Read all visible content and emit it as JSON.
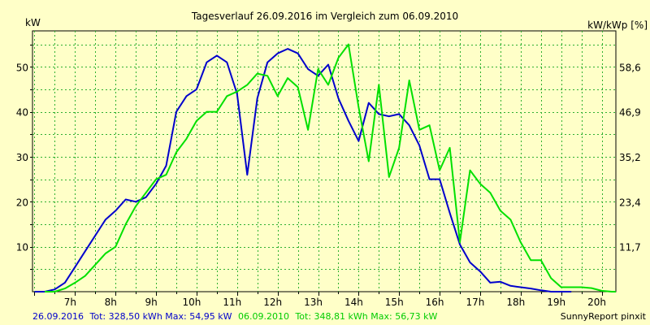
{
  "chart_data": {
    "type": "line",
    "title": "Tagesverlauf 26.09.2016 im Vergleich zum 06.09.2010",
    "ylabel_left": "kW",
    "ylabel_right": "kW/kWp [%]",
    "xlim": [
      5.95,
      20.35
    ],
    "ylim": [
      0,
      58
    ],
    "x_ticks": [
      {
        "value": 7,
        "label": "7h"
      },
      {
        "value": 8,
        "label": "8h"
      },
      {
        "value": 9,
        "label": "9h"
      },
      {
        "value": 10,
        "label": "10h"
      },
      {
        "value": 11,
        "label": "11h"
      },
      {
        "value": 12,
        "label": "12h"
      },
      {
        "value": 13,
        "label": "13h"
      },
      {
        "value": 14,
        "label": "14h"
      },
      {
        "value": 15,
        "label": "15h"
      },
      {
        "value": 16,
        "label": "16h"
      },
      {
        "value": 17,
        "label": "17h"
      },
      {
        "value": 18,
        "label": "18h"
      },
      {
        "value": 19,
        "label": "19h"
      },
      {
        "value": 20,
        "label": "20h"
      }
    ],
    "y_ticks_left": [
      10,
      20,
      30,
      40,
      50
    ],
    "y_ticks_right": [
      {
        "value": 10,
        "label": "11,7"
      },
      {
        "value": 20,
        "label": "23,4"
      },
      {
        "value": 30,
        "label": "35,2"
      },
      {
        "value": 40,
        "label": "46,9"
      },
      {
        "value": 50,
        "label": "58,6"
      }
    ],
    "grid": true,
    "series": [
      {
        "name": "26.09.2016",
        "color": "#0000cc",
        "points": [
          [
            6.0,
            0
          ],
          [
            6.25,
            0
          ],
          [
            6.5,
            0.5
          ],
          [
            6.75,
            2
          ],
          [
            7.0,
            5.5
          ],
          [
            7.25,
            9
          ],
          [
            7.5,
            12.5
          ],
          [
            7.75,
            16
          ],
          [
            8.0,
            18
          ],
          [
            8.25,
            20.5
          ],
          [
            8.5,
            20
          ],
          [
            8.75,
            21
          ],
          [
            9.0,
            24
          ],
          [
            9.25,
            28
          ],
          [
            9.5,
            40
          ],
          [
            9.75,
            43.5
          ],
          [
            10.0,
            45
          ],
          [
            10.25,
            51
          ],
          [
            10.5,
            52.5
          ],
          [
            10.75,
            51
          ],
          [
            11.0,
            44
          ],
          [
            11.25,
            26
          ],
          [
            11.5,
            43
          ],
          [
            11.75,
            51
          ],
          [
            12.0,
            53
          ],
          [
            12.25,
            54
          ],
          [
            12.5,
            53
          ],
          [
            12.75,
            49.5
          ],
          [
            13.0,
            48
          ],
          [
            13.25,
            50.5
          ],
          [
            13.5,
            43
          ],
          [
            13.75,
            38
          ],
          [
            14.0,
            33.5
          ],
          [
            14.25,
            42
          ],
          [
            14.5,
            39.5
          ],
          [
            14.75,
            39
          ],
          [
            15.0,
            39.5
          ],
          [
            15.25,
            37
          ],
          [
            15.5,
            32.5
          ],
          [
            15.75,
            25
          ],
          [
            16.0,
            25
          ],
          [
            16.25,
            17.5
          ],
          [
            16.5,
            10.5
          ],
          [
            16.75,
            6.5
          ],
          [
            17.0,
            4.5
          ],
          [
            17.25,
            2
          ],
          [
            17.5,
            2.2
          ],
          [
            17.75,
            1.3
          ],
          [
            18.0,
            1
          ],
          [
            18.25,
            0.7
          ],
          [
            18.5,
            0.3
          ],
          [
            18.75,
            0
          ],
          [
            19.0,
            0
          ],
          [
            19.25,
            0
          ]
        ]
      },
      {
        "name": "06.09.2010",
        "color": "#00e000",
        "points": [
          [
            6.25,
            0
          ],
          [
            6.5,
            0
          ],
          [
            6.75,
            0.7
          ],
          [
            7.0,
            2
          ],
          [
            7.25,
            3.5
          ],
          [
            7.5,
            6
          ],
          [
            7.75,
            8.5
          ],
          [
            8.0,
            10
          ],
          [
            8.25,
            15
          ],
          [
            8.5,
            19
          ],
          [
            8.75,
            22
          ],
          [
            9.0,
            25
          ],
          [
            9.25,
            26
          ],
          [
            9.5,
            31
          ],
          [
            9.75,
            34
          ],
          [
            10.0,
            38
          ],
          [
            10.25,
            40
          ],
          [
            10.5,
            40
          ],
          [
            10.75,
            43.5
          ],
          [
            11.0,
            44.5
          ],
          [
            11.25,
            46
          ],
          [
            11.5,
            48.5
          ],
          [
            11.75,
            48
          ],
          [
            12.0,
            43.5
          ],
          [
            12.25,
            47.5
          ],
          [
            12.5,
            45.5
          ],
          [
            12.75,
            36
          ],
          [
            13.0,
            49.5
          ],
          [
            13.25,
            46
          ],
          [
            13.5,
            52
          ],
          [
            13.75,
            55
          ],
          [
            14.0,
            41
          ],
          [
            14.25,
            29
          ],
          [
            14.5,
            46
          ],
          [
            14.75,
            25.5
          ],
          [
            15.0,
            32
          ],
          [
            15.25,
            47
          ],
          [
            15.5,
            36
          ],
          [
            15.75,
            37
          ],
          [
            16.0,
            27
          ],
          [
            16.25,
            32
          ],
          [
            16.5,
            11
          ],
          [
            16.75,
            27
          ],
          [
            17.0,
            24
          ],
          [
            17.25,
            22
          ],
          [
            17.5,
            18
          ],
          [
            17.75,
            16
          ],
          [
            18.0,
            11
          ],
          [
            18.25,
            7
          ],
          [
            18.5,
            7
          ],
          [
            18.75,
            3
          ],
          [
            19.0,
            1
          ],
          [
            19.25,
            1
          ],
          [
            19.5,
            1
          ],
          [
            19.75,
            0.8
          ],
          [
            20.0,
            0.2
          ],
          [
            20.25,
            0
          ],
          [
            20.35,
            0
          ]
        ]
      }
    ]
  },
  "footer": {
    "s1_date": "26.09.2016",
    "s1_stats": "Tot: 328,50 kWh Max: 54,95 kW",
    "s2_date": "06.09.2010",
    "s2_stats": "Tot: 348,81 kWh Max: 56,73 kW",
    "credit": "SunnyReport pinxit",
    "s1_color": "#0000cc",
    "s2_color": "#00e000"
  }
}
